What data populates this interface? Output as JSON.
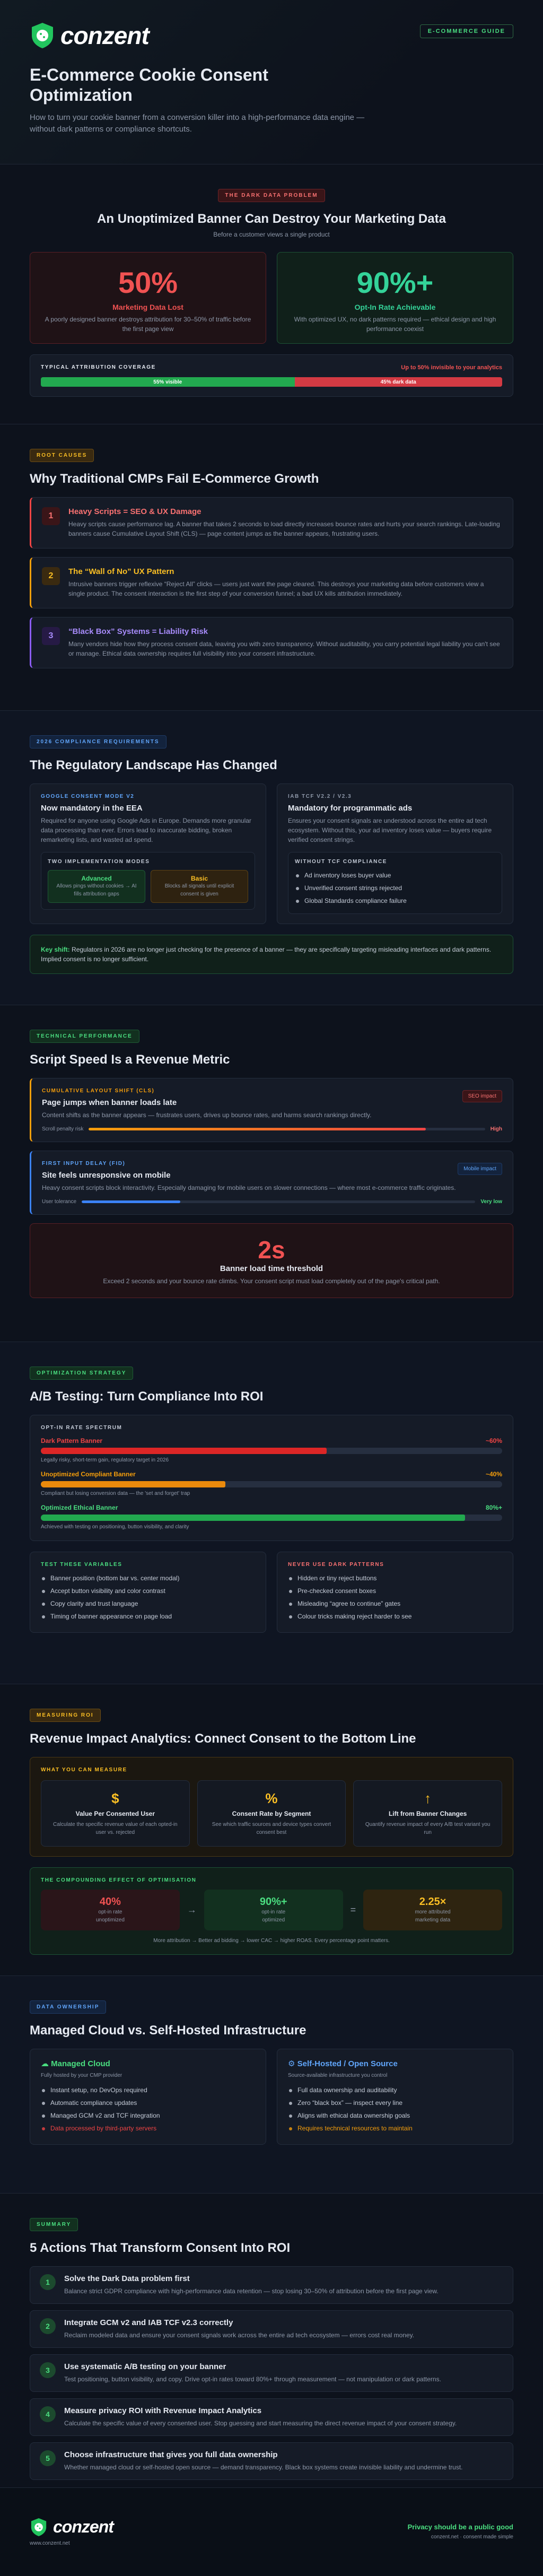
{
  "header": {
    "logo": "conzent",
    "badge": "E-COMMERCE GUIDE",
    "title": "E-Commerce Cookie Consent Optimization",
    "subtitle": "How to turn your cookie banner from a conversion killer into a high-performance data engine — without dark patterns or compliance shortcuts."
  },
  "dark_data": {
    "pill": "THE DARK DATA PROBLEM",
    "heading": "An Unoptimized Banner Can Destroy Your Marketing Data",
    "subheading": "Before a customer views a single product",
    "cards": [
      {
        "value": "50%",
        "label": "Marketing Data Lost",
        "text": "A poorly designed banner destroys attribution for 30–50% of traffic before the first page view"
      },
      {
        "value": "90%+",
        "label": "Opt-In Rate Achievable",
        "text": "With optimized UX, no dark patterns required — ethical design and high performance coexist"
      }
    ],
    "coverage": {
      "label": "TYPICAL ATTRIBUTION COVERAGE",
      "note": "Up to 50% invisible to your analytics",
      "visible": "55% visible",
      "dark": "45% dark data"
    }
  },
  "root_causes": {
    "pill": "ROOT CAUSES",
    "heading": "Why Traditional CMPs Fail E-Commerce Growth",
    "items": [
      {
        "number": "1",
        "title": "Heavy Scripts = SEO & UX Damage",
        "text": "Heavy scripts cause performance lag. A banner that takes 2 seconds to load directly increases bounce rates and hurts your search rankings. Late-loading banners cause Cumulative Layout Shift (CLS) — page content jumps as the banner appears, frustrating users."
      },
      {
        "number": "2",
        "title": "The “Wall of No” UX Pattern",
        "text": "Intrusive banners trigger reflexive “Reject All” clicks — users just want the page cleared. This destroys your marketing data before customers view a single product. The consent interaction is the first step of your conversion funnel; a bad UX kills attribution immediately."
      },
      {
        "number": "3",
        "title": "“Black Box” Systems = Liability Risk",
        "text": "Many vendors hide how they process consent data, leaving you with zero transparency. Without auditability, you carry potential legal liability you can't see or manage. Ethical data ownership requires full visibility into your consent infrastructure."
      }
    ]
  },
  "compliance": {
    "pill": "2026 COMPLIANCE REQUIREMENTS",
    "heading": "The Regulatory Landscape Has Changed",
    "gcm": {
      "tag": "GOOGLE CONSENT MODE V2",
      "title": "Now mandatory in the EEA",
      "text": "Required for anyone using Google Ads in Europe. Demands more granular data processing than ever. Errors lead to inaccurate bidding, broken remarketing lists, and wasted ad spend.",
      "modes_label": "TWO IMPLEMENTATION MODES",
      "modes": [
        {
          "name": "Advanced",
          "text": "Allows pings without cookies → AI fills attribution gaps"
        },
        {
          "name": "Basic",
          "text": "Blocks all signals until explicit consent is given"
        }
      ]
    },
    "tcf": {
      "tag": "IAB TCF V2.2 / V2.3",
      "title": "Mandatory for programmatic ads",
      "text": "Ensures your consent signals are understood across the entire ad tech ecosystem. Without this, your ad inventory loses value — buyers require verified consent strings.",
      "list_label": "WITHOUT TCF COMPLIANCE",
      "items": [
        "Ad inventory loses buyer value",
        "Unverified consent strings rejected",
        "Global Standards compliance failure"
      ]
    },
    "key_shift": {
      "label": "Key shift:",
      "text": "Regulators in 2026 are no longer just checking for the presence of a banner — they are specifically targeting misleading interfaces and dark patterns. Implied consent is no longer sufficient."
    }
  },
  "performance": {
    "pill": "TECHNICAL PERFORMANCE",
    "heading": "Script Speed Is a Revenue Metric",
    "metrics": [
      {
        "tag": "CUMULATIVE LAYOUT SHIFT (CLS)",
        "title": "Page jumps when banner loads late",
        "badge": "SEO impact",
        "text": "Content shifts as the banner appears — frustrates users, drives up bounce rates, and harms search rankings directly.",
        "meter_label": "Scroll penalty risk",
        "meter_value": "High"
      },
      {
        "tag": "FIRST INPUT DELAY (FID)",
        "title": "Site feels unresponsive on mobile",
        "badge": "Mobile impact",
        "text": "Heavy consent scripts block interactivity. Especially damaging for mobile users on slower connections — where most e-commerce traffic originates.",
        "meter_label": "User tolerance",
        "meter_value": "Very low"
      }
    ],
    "threshold": {
      "value": "2s",
      "title": "Banner load time threshold",
      "text": "Exceed 2 seconds and your bounce rate climbs. Your consent script must load completely out of the page's critical path."
    }
  },
  "ab_testing": {
    "pill": "OPTIMIZATION STRATEGY",
    "heading": "A/B Testing: Turn Compliance Into ROI",
    "spectrum": {
      "label": "OPT-IN RATE SPECTRUM",
      "rows": [
        {
          "name": "Dark Pattern Banner",
          "value": "~60%",
          "note": "Legally risky, short-term gain, regulatory target in 2026"
        },
        {
          "name": "Unoptimized Compliant Banner",
          "value": "~40%",
          "note": "Compliant but losing conversion data — the 'set and forget' trap"
        },
        {
          "name": "Optimized Ethical Banner",
          "value": "80%+",
          "note": "Achieved with testing on positioning, button visibility, and clarity"
        }
      ]
    },
    "test": {
      "label": "TEST THESE VARIABLES",
      "items": [
        "Banner position (bottom bar vs. center modal)",
        "Accept button visibility and color contrast",
        "Copy clarity and trust language",
        "Timing of banner appearance on page load"
      ]
    },
    "never": {
      "label": "NEVER USE DARK PATTERNS",
      "items": [
        "Hidden or tiny reject buttons",
        "Pre-checked consent boxes",
        "Misleading “agree to continue” gates",
        "Colour tricks making reject harder to see"
      ]
    }
  },
  "roi": {
    "pill": "MEASURING ROI",
    "heading": "Revenue Impact Analytics: Connect Consent to the Bottom Line",
    "measure": {
      "label": "WHAT YOU CAN MEASURE",
      "items": [
        {
          "icon": "$",
          "title": "Value Per Consented User",
          "text": "Calculate the specific revenue value of each opted-in user vs. rejected"
        },
        {
          "icon": "%",
          "title": "Consent Rate by Segment",
          "text": "See which traffic sources and device types convert consent best"
        },
        {
          "icon": "↑",
          "title": "Lift from Banner Changes",
          "text": "Quantify revenue impact of every A/B test variant you run"
        }
      ]
    },
    "compounding": {
      "label": "THE COMPOUNDING EFFECT OF OPTIMISATION",
      "steps": [
        {
          "value": "40%",
          "line1": "opt-in rate",
          "line2": "unoptimized"
        },
        {
          "value": "90%+",
          "line1": "opt-in rate",
          "line2": "optimized"
        },
        {
          "value": "2.25×",
          "line1": "more attributed",
          "line2": "marketing data"
        }
      ],
      "operators": [
        "→",
        "="
      ],
      "note": "More attribution → Better ad bidding → lower CAC → higher ROAS. Every percentage point matters."
    }
  },
  "ownership": {
    "pill": "DATA OWNERSHIP",
    "heading": "Managed Cloud vs. Self-Hosted Infrastructure",
    "options": [
      {
        "title": "☁ Managed Cloud",
        "subtitle": "Fully hosted by your CMP provider",
        "pros": [
          "Instant setup, no DevOps required",
          "Automatic compliance updates",
          "Managed GCM v2 and TCF integration"
        ],
        "cons": [
          "Data processed by third-party servers"
        ]
      },
      {
        "title": "⚙ Self-Hosted / Open Source",
        "subtitle": "Source-available infrastructure you control",
        "pros": [
          "Full data ownership and auditability",
          "Zero “black box” — inspect every line",
          "Aligns with ethical data ownership goals"
        ],
        "cons": [
          "Requires technical resources to maintain"
        ]
      }
    ]
  },
  "summary": {
    "pill": "SUMMARY",
    "heading": "5 Actions That Transform Consent Into ROI",
    "items": [
      {
        "number": "1",
        "title": "Solve the Dark Data problem first",
        "text": "Balance strict GDPR compliance with high-performance data retention — stop losing 30–50% of attribution before the first page view."
      },
      {
        "number": "2",
        "title": "Integrate GCM v2 and IAB TCF v2.3 correctly",
        "text": "Reclaim modeled data and ensure your consent signals work across the entire ad tech ecosystem — errors cost real money."
      },
      {
        "number": "3",
        "title": "Use systematic A/B testing on your banner",
        "text": "Test positioning, button visibility, and copy. Drive opt-in rates toward 80%+ through measurement — not manipulation or dark patterns."
      },
      {
        "number": "4",
        "title": "Measure privacy ROI with Revenue Impact Analytics",
        "text": "Calculate the specific value of every consented user. Stop guessing and start measuring the direct revenue impact of your consent strategy."
      },
      {
        "number": "5",
        "title": "Choose infrastructure that gives you full data ownership",
        "text": "Whether managed cloud or self-hosted open source — demand transparency. Black box systems create invisible liability and undermine trust."
      }
    ]
  },
  "footer": {
    "logo": "conzent",
    "url": "www.conzent.net",
    "tagline": "Privacy should be a public good",
    "note": "conzent.net · consent made simple"
  }
}
